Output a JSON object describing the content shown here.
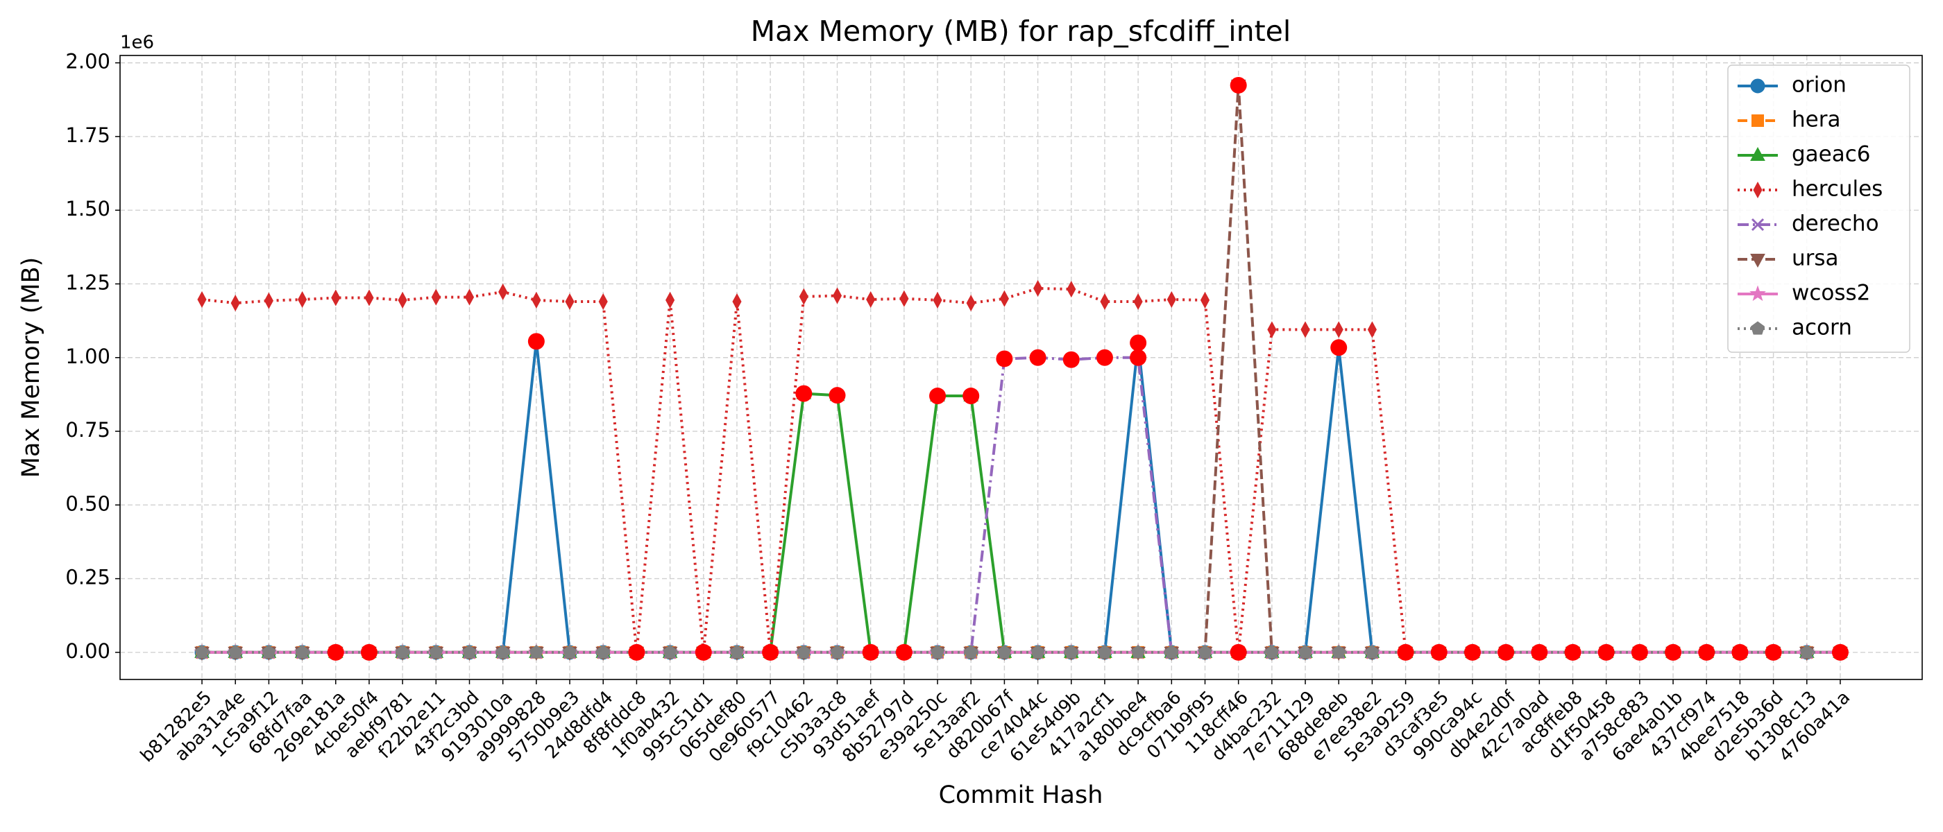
{
  "chart_data": {
    "type": "line",
    "title": "Max Memory (MB) for rap_sfcdiff_intel",
    "x_label": "Commit Hash",
    "y_label": "Max Memory (MB)",
    "y_offset_label": "1e6",
    "categories": [
      "b81282e5",
      "aba31a4e",
      "1c5a9f12",
      "68fd7faa",
      "269e181a",
      "4cbe50f4",
      "aebf9781",
      "f22b2e11",
      "43f2c3bd",
      "9193010a",
      "a9999828",
      "5750b9e3",
      "24d8dfd4",
      "8f8fddc8",
      "1f0ab432",
      "995c51d1",
      "065def80",
      "0e960577",
      "f9c10462",
      "c5b3a3c8",
      "93d51aef",
      "8b52797d",
      "e39a250c",
      "5e13aaf2",
      "d820b67f",
      "ce74044c",
      "61e54d9b",
      "417a2cf1",
      "a180bbe4",
      "dc9cfba6",
      "071b9f95",
      "118cff46",
      "d4bac232",
      "7e711129",
      "688de8eb",
      "e7ee38e2",
      "5e3a9259",
      "d3caf3e5",
      "990ca94c",
      "db4e2d0f",
      "42c7a0ad",
      "ac8ffeb8",
      "d1f50458",
      "a758c883",
      "6ae4a01b",
      "437cf974",
      "4bee7518",
      "d2e5b36d",
      "b1308c13",
      "4760a41a"
    ],
    "ylim": [
      -92000,
      2025000
    ],
    "yticks": [
      {
        "value": 0,
        "label": "0.00"
      },
      {
        "value": 250000,
        "label": "0.25"
      },
      {
        "value": 500000,
        "label": "0.50"
      },
      {
        "value": 750000,
        "label": "0.75"
      },
      {
        "value": 1000000,
        "label": "1.00"
      },
      {
        "value": 1250000,
        "label": "1.25"
      },
      {
        "value": 1500000,
        "label": "1.50"
      },
      {
        "value": 1750000,
        "label": "1.75"
      },
      {
        "value": 2000000,
        "label": "2.00"
      }
    ],
    "grid": true,
    "legend": "upper right",
    "highlight_color": "#ff0000",
    "series": [
      {
        "name": "orion",
        "color": "#1f77b4",
        "marker": "circle",
        "linestyle": "solid",
        "values": [
          0,
          0,
          0,
          0,
          0,
          0,
          0,
          0,
          0,
          0,
          1055000,
          0,
          0,
          0,
          0,
          0,
          0,
          0,
          0,
          0,
          0,
          0,
          0,
          0,
          0,
          0,
          0,
          0,
          1050000,
          0,
          0,
          0,
          0,
          0,
          1034000,
          0,
          0,
          0,
          0,
          0,
          0,
          0,
          0,
          0,
          0,
          0,
          0,
          0,
          0,
          0
        ],
        "highlighted": [
          false,
          false,
          false,
          false,
          true,
          true,
          false,
          false,
          false,
          false,
          true,
          false,
          false,
          false,
          false,
          false,
          false,
          false,
          false,
          false,
          false,
          false,
          false,
          false,
          false,
          false,
          false,
          false,
          true,
          false,
          false,
          false,
          false,
          false,
          true,
          false,
          true,
          true,
          true,
          true,
          true,
          true,
          true,
          true,
          true,
          true,
          true,
          true,
          false,
          true
        ]
      },
      {
        "name": "hera",
        "color": "#ff7f0e",
        "marker": "square",
        "linestyle": "dashed",
        "values": [
          0,
          0,
          0,
          0,
          0,
          0,
          0,
          0,
          0,
          0,
          0,
          0,
          0,
          0,
          0,
          0,
          0,
          0,
          0,
          0,
          0,
          0,
          0,
          0,
          0,
          0,
          0,
          0,
          0,
          0,
          0,
          0,
          0,
          0,
          0,
          0,
          0,
          0,
          0,
          0,
          0,
          0,
          0,
          0,
          0,
          0,
          0,
          0,
          0,
          0
        ]
      },
      {
        "name": "gaeac6",
        "color": "#2ca02c",
        "marker": "triangle-up",
        "linestyle": "solid",
        "values": [
          0,
          0,
          0,
          0,
          0,
          0,
          0,
          0,
          0,
          0,
          0,
          0,
          0,
          0,
          0,
          0,
          0,
          0,
          878000,
          872000,
          0,
          0,
          870000,
          870000,
          0,
          0,
          0,
          0,
          0,
          0,
          0,
          0,
          0,
          0,
          0,
          0,
          0,
          0,
          0,
          0,
          0,
          0,
          0,
          0,
          0,
          0,
          0,
          0,
          0,
          0
        ],
        "highlighted": [
          false,
          false,
          false,
          false,
          false,
          false,
          false,
          false,
          false,
          false,
          false,
          false,
          false,
          false,
          false,
          false,
          false,
          false,
          true,
          true,
          true,
          true,
          true,
          true,
          false,
          false,
          false,
          false,
          false,
          false,
          false,
          false,
          false,
          false,
          false,
          false,
          false,
          false,
          false,
          false,
          false,
          false,
          false,
          false,
          false,
          false,
          false,
          false,
          false,
          false
        ]
      },
      {
        "name": "hercules",
        "color": "#d62728",
        "marker": "thin-diamond",
        "linestyle": "dotted",
        "values": [
          1197000,
          1185000,
          1193000,
          1197000,
          1203000,
          1203000,
          1195000,
          1205000,
          1205000,
          1223000,
          1195000,
          1190000,
          1190000,
          0,
          1195000,
          0,
          1190000,
          0,
          1207000,
          1210000,
          1197000,
          1200000,
          1195000,
          1185000,
          1200000,
          1235000,
          1232000,
          1190000,
          1190000,
          1197000,
          1195000,
          0,
          1095000,
          1095000,
          1095000,
          1095000,
          0,
          0,
          0,
          0,
          0,
          0,
          0,
          0,
          0,
          0,
          0,
          0,
          0,
          0
        ],
        "highlighted": [
          false,
          false,
          false,
          false,
          false,
          false,
          false,
          false,
          false,
          false,
          false,
          false,
          false,
          true,
          false,
          true,
          false,
          true,
          false,
          false,
          false,
          false,
          false,
          false,
          false,
          false,
          false,
          false,
          false,
          false,
          false,
          true,
          false,
          false,
          false,
          false,
          false,
          false,
          false,
          false,
          false,
          false,
          false,
          false,
          false,
          false,
          false,
          false,
          false,
          false
        ]
      },
      {
        "name": "derecho",
        "color": "#9467bd",
        "marker": "x",
        "linestyle": "dashdot",
        "values": [
          0,
          0,
          0,
          0,
          0,
          0,
          0,
          0,
          0,
          0,
          0,
          0,
          0,
          0,
          0,
          0,
          0,
          0,
          0,
          0,
          0,
          0,
          0,
          0,
          996000,
          1000000,
          993000,
          1000000,
          1000000,
          0,
          0,
          0,
          0,
          0,
          0,
          0,
          0,
          0,
          0,
          0,
          0,
          0,
          0,
          0,
          0,
          0,
          0,
          0,
          0,
          0
        ],
        "highlighted": [
          false,
          false,
          false,
          false,
          false,
          false,
          false,
          false,
          false,
          false,
          false,
          false,
          false,
          false,
          false,
          false,
          false,
          false,
          false,
          false,
          false,
          false,
          false,
          false,
          true,
          true,
          true,
          true,
          true,
          false,
          false,
          false,
          false,
          false,
          false,
          false,
          false,
          false,
          false,
          false,
          false,
          false,
          false,
          false,
          false,
          false,
          false,
          false,
          false,
          false
        ]
      },
      {
        "name": "ursa",
        "color": "#8c564b",
        "marker": "triangle-down",
        "linestyle": "dashed",
        "values": [
          0,
          0,
          0,
          0,
          0,
          0,
          0,
          0,
          0,
          0,
          0,
          0,
          0,
          0,
          0,
          0,
          0,
          0,
          0,
          0,
          0,
          0,
          0,
          0,
          0,
          0,
          0,
          0,
          0,
          0,
          0,
          1924000,
          0,
          0,
          0,
          0,
          0,
          0,
          0,
          0,
          0,
          0,
          0,
          0,
          0,
          0,
          0,
          0,
          0,
          0
        ],
        "highlighted": [
          false,
          false,
          false,
          false,
          false,
          false,
          false,
          false,
          false,
          false,
          false,
          false,
          false,
          false,
          false,
          false,
          false,
          false,
          false,
          false,
          false,
          false,
          false,
          false,
          false,
          false,
          false,
          false,
          false,
          false,
          false,
          true,
          false,
          false,
          false,
          false,
          false,
          false,
          false,
          false,
          false,
          false,
          false,
          false,
          false,
          false,
          false,
          false,
          false,
          false
        ]
      },
      {
        "name": "wcoss2",
        "color": "#e377c2",
        "marker": "star",
        "linestyle": "solid",
        "values": [
          0,
          0,
          0,
          0,
          0,
          0,
          0,
          0,
          0,
          0,
          0,
          0,
          0,
          0,
          0,
          0,
          0,
          0,
          0,
          0,
          0,
          0,
          0,
          0,
          0,
          0,
          0,
          0,
          0,
          0,
          0,
          0,
          0,
          0,
          0,
          0,
          0,
          0,
          0,
          0,
          0,
          0,
          0,
          0,
          0,
          0,
          0,
          0,
          0,
          0
        ]
      },
      {
        "name": "acorn",
        "color": "#7f7f7f",
        "marker": "pentagon",
        "linestyle": "dotted",
        "values": [
          0,
          0,
          0,
          0,
          0,
          0,
          0,
          0,
          0,
          0,
          0,
          0,
          0,
          0,
          0,
          0,
          0,
          0,
          0,
          0,
          0,
          0,
          0,
          0,
          0,
          0,
          0,
          0,
          0,
          0,
          0,
          0,
          0,
          0,
          0,
          0,
          0,
          0,
          0,
          0,
          0,
          0,
          0,
          0,
          0,
          0,
          0,
          0,
          0,
          0
        ]
      }
    ]
  }
}
